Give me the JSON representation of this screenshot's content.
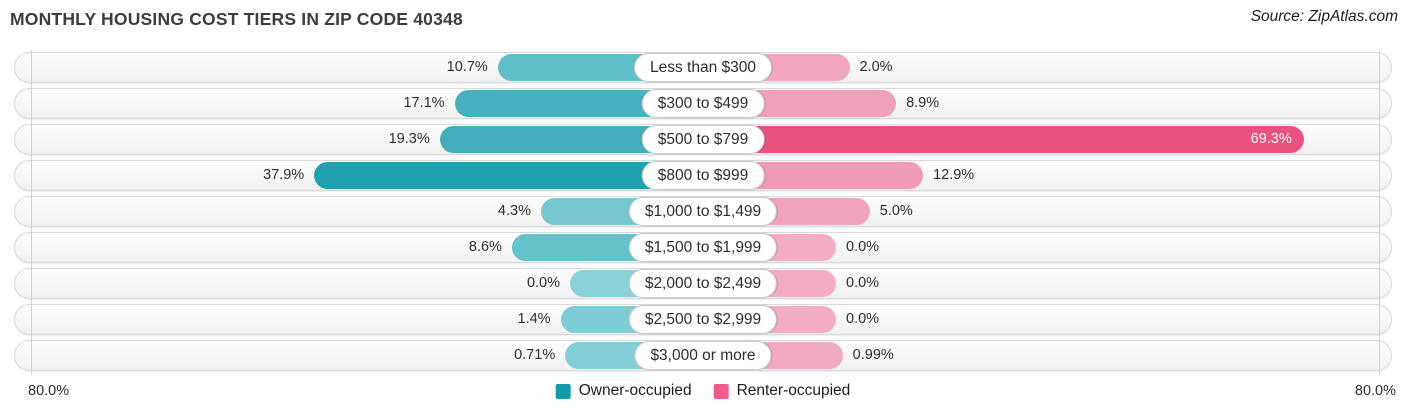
{
  "header": {
    "title": "MONTHLY HOUSING COST TIERS IN ZIP CODE 40348",
    "source": "Source: ZipAtlas.com"
  },
  "chart_data": {
    "type": "bar",
    "variant": "diverging-horizontal-pyramid",
    "title": "Monthly Housing Cost Tiers in Zip Code 40348",
    "categories": [
      "Less than $300",
      "$300 to $499",
      "$500 to $799",
      "$800 to $999",
      "$1,000 to $1,499",
      "$1,500 to $1,999",
      "$2,000 to $2,499",
      "$2,500 to $2,999",
      "$3,000 or more"
    ],
    "series": [
      {
        "name": "Owner-occupied",
        "side": "left",
        "color": "#159aaa",
        "values": [
          10.7,
          17.1,
          19.3,
          37.9,
          4.3,
          8.6,
          0.0,
          1.4,
          0.71
        ]
      },
      {
        "name": "Renter-occupied",
        "side": "right",
        "color": "#ef5c8c",
        "values": [
          2.0,
          8.9,
          69.3,
          12.9,
          5.0,
          0.0,
          0.0,
          0.0,
          0.99
        ]
      }
    ],
    "value_labels": {
      "owner": [
        "10.7%",
        "17.1%",
        "19.3%",
        "37.9%",
        "4.3%",
        "8.6%",
        "0.0%",
        "1.4%",
        "0.71%"
      ],
      "renter": [
        "2.0%",
        "8.9%",
        "69.3%",
        "12.9%",
        "5.0%",
        "0.0%",
        "0.0%",
        "0.0%",
        "0.99%"
      ]
    },
    "bar_colors": {
      "owner": [
        "#5fbec8",
        "#49b0bf",
        "#43adbc",
        "#21a0af",
        "#76c7cf",
        "#65c1ca",
        "#8ad2d8",
        "#7fcdd4",
        "#84cfd6"
      ],
      "renter": [
        "#f2a6c2",
        "#f09fbd",
        "#e9517f",
        "#ef9ab9",
        "#f1a3c0",
        "#f3abc6",
        "#f3abc6",
        "#f3abc6",
        "#f2a9c4"
      ]
    },
    "renter_label_inside_index": 2,
    "axis": {
      "xlim": [
        0,
        80
      ],
      "left_max_label": "80.0%",
      "right_max_label": "80.0%",
      "gridlines": true
    },
    "legend": {
      "position": "bottom-center",
      "items": [
        {
          "label": "Owner-occupied",
          "color": "#159aaa"
        },
        {
          "label": "Renter-occupied",
          "color": "#ef5c8c"
        }
      ]
    }
  }
}
